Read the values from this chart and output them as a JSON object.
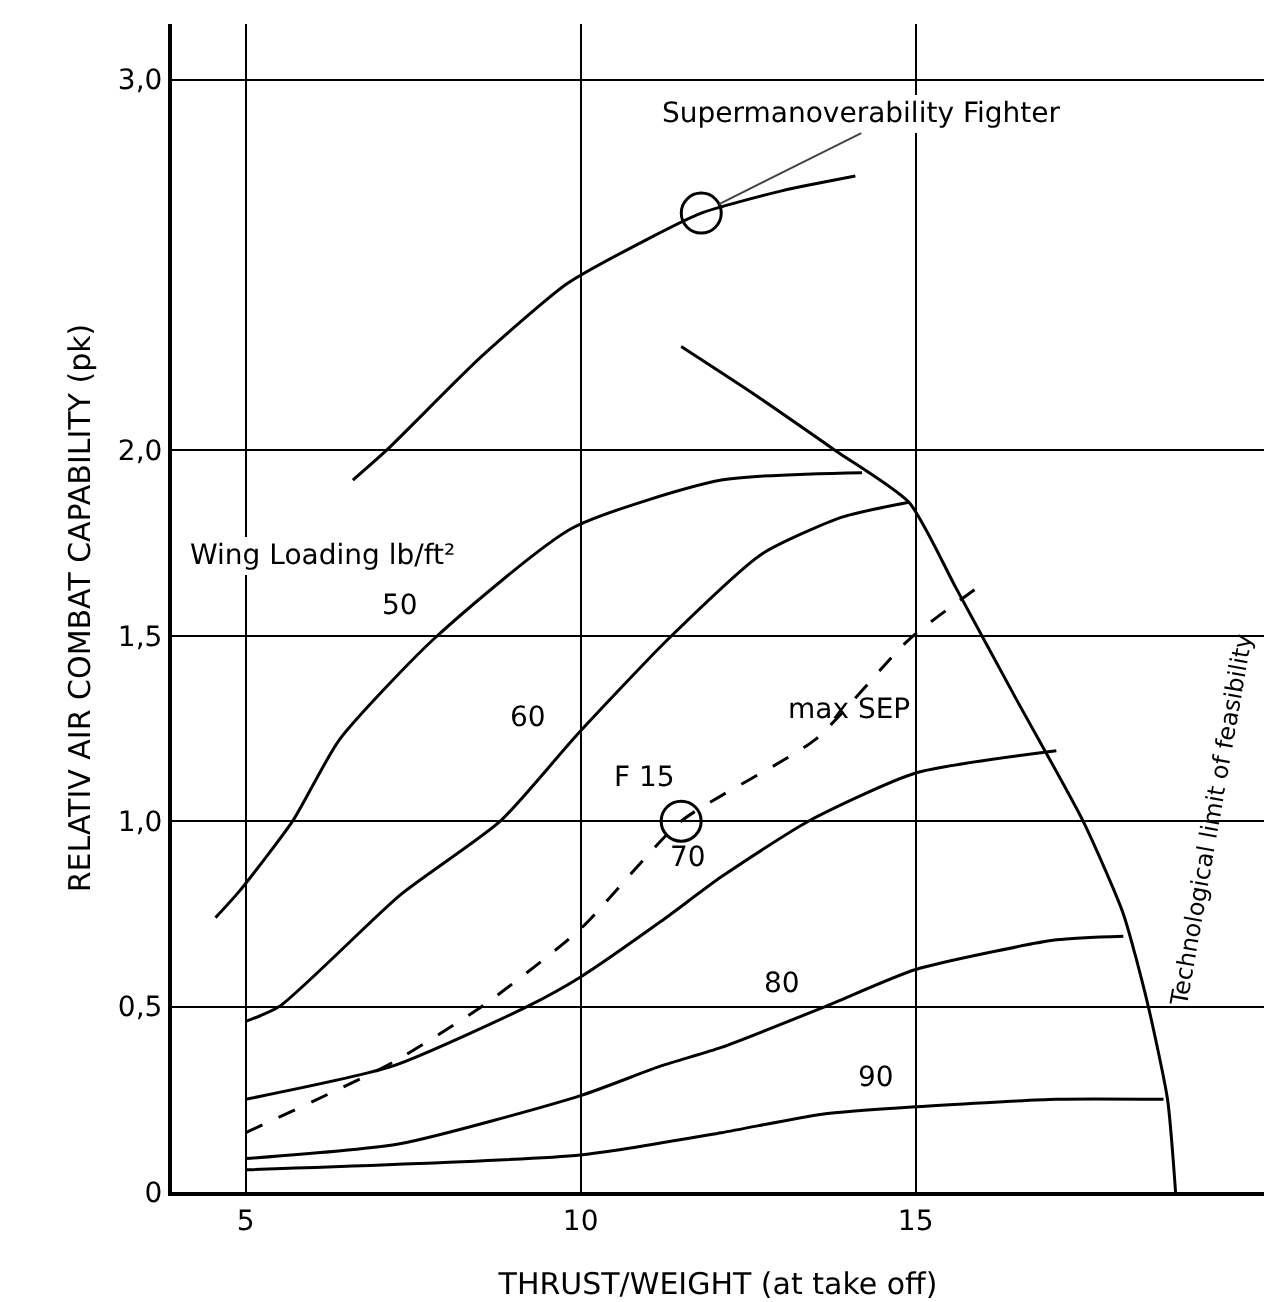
{
  "chart_data": {
    "type": "line",
    "xlabel": "THRUST/WEIGHT (at take off)",
    "ylabel": "RELATIV AIR COMBAT CAPABILITY (pk)",
    "xlim": [
      3.9,
      20.2
    ],
    "ylim": [
      0,
      3.15
    ],
    "xticks": [
      5,
      10,
      15
    ],
    "yticks": [
      0,
      {
        "value": 0.5,
        "label": "0,5"
      },
      {
        "value": 1.0,
        "label": "1,0"
      },
      {
        "value": 1.5,
        "label": "1,5"
      },
      {
        "value": 2.0,
        "label": "2,0"
      },
      {
        "value": 3.0,
        "label": "3,0"
      }
    ],
    "grid": true,
    "series": [
      {
        "color": "#000000",
        "x": [
          6.6,
          7.1,
          8.5,
          9.8,
          11.0,
          11.8,
          13.0,
          14.1
        ],
        "values": [
          1.92,
          2.0,
          2.25,
          2.45,
          2.57,
          2.64,
          2.7,
          2.74
        ]
      },
      {
        "color": "#000000",
        "x": [
          11.5,
          12.6,
          13.8,
          14.9,
          15.6,
          16.5,
          17.5,
          18.1,
          18.46,
          18.76,
          18.88
        ],
        "values": [
          2.28,
          2.15,
          2.0,
          1.86,
          1.63,
          1.33,
          1.0,
          0.75,
          0.51,
          0.25,
          0
        ]
      },
      {
        "color": "#000000",
        "x": [
          4.55,
          4.9,
          5.7,
          6.4,
          7.8,
          9.87,
          12.1,
          14.2
        ],
        "values": [
          0.74,
          0.81,
          1.0,
          1.22,
          1.49,
          1.79,
          1.92,
          1.94
        ]
      },
      {
        "color": "#000000",
        "x": [
          5.0,
          5.5,
          7.3,
          8.8,
          9.93,
          11.3,
          12.7,
          13.9,
          14.9
        ],
        "values": [
          0.46,
          0.5,
          0.8,
          1.0,
          1.23,
          1.49,
          1.72,
          1.82,
          1.86
        ]
      },
      {
        "color": "#000000",
        "line_style": "dashed",
        "x": [
          5.0,
          7.2,
          8.6,
          10.0,
          11.5,
          13.5,
          14.9,
          16.0
        ],
        "values": [
          0.16,
          0.35,
          0.51,
          0.71,
          1.0,
          1.22,
          1.49,
          1.64
        ]
      },
      {
        "color": "#000000",
        "x": [
          5.0,
          7.2,
          9.2,
          10.0,
          11.2,
          12.1,
          13.4,
          15.0,
          17.1
        ],
        "values": [
          0.25,
          0.34,
          0.5,
          0.58,
          0.73,
          0.85,
          1.0,
          1.13,
          1.19
        ]
      },
      {
        "color": "#000000",
        "x": [
          5.0,
          7.3,
          10.0,
          11.2,
          12.1,
          13.65,
          15.0,
          17.1,
          18.1
        ],
        "values": [
          0.09,
          0.13,
          0.26,
          0.34,
          0.39,
          0.5,
          0.6,
          0.68,
          0.69
        ]
      },
      {
        "color": "#000000",
        "x": [
          5.0,
          10.0,
          12.1,
          13.6,
          15.0,
          17.1,
          18.7
        ],
        "values": [
          0.06,
          0.1,
          0.16,
          0.21,
          0.23,
          0.25,
          0.25
        ]
      },
      {
        "type": "scatter",
        "marker": "circle",
        "color": "#000000",
        "x": [
          11.5
        ],
        "values": [
          1.0
        ]
      },
      {
        "type": "scatter",
        "marker": "circle",
        "color": "#000000",
        "x": [
          11.8
        ],
        "values": [
          2.64
        ]
      }
    ],
    "annotations": [
      "Wing Loading lb/ft²",
      "Technological limit of feasibility",
      {
        "text": "Supermanoverability Fighter",
        "x": 11.8,
        "y": 2.64
      },
      {
        "text": "F 15",
        "x": 11.5,
        "y": 1.0
      },
      {
        "text": "max SEP",
        "x": 14.0,
        "y": 1.3
      },
      "50",
      "60",
      "70",
      "80",
      "90"
    ]
  }
}
